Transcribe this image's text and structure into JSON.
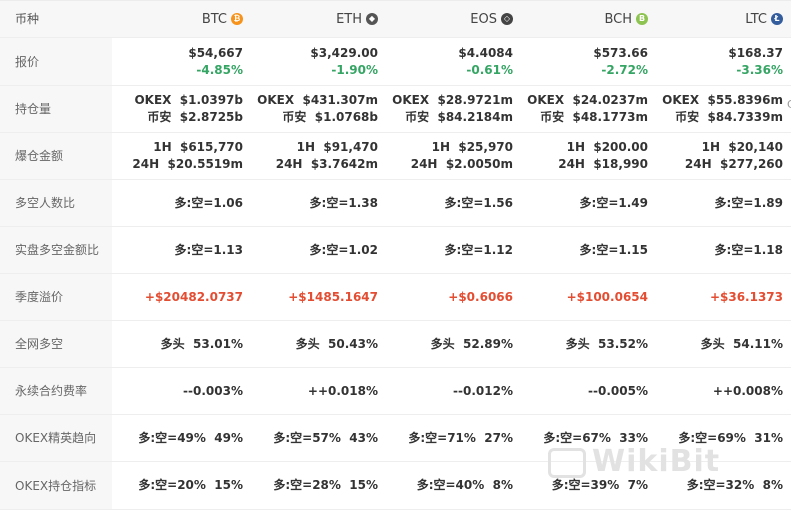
{
  "header": {
    "label": "币种",
    "coins": [
      {
        "name": "BTC",
        "icon": "bitcoin-icon",
        "color": "#f7931a",
        "glyph": "₿"
      },
      {
        "name": "ETH",
        "icon": "ethereum-icon",
        "color": "#555555",
        "glyph": "◆"
      },
      {
        "name": "EOS",
        "icon": "eos-icon",
        "color": "#444444",
        "glyph": "◇"
      },
      {
        "name": "BCH",
        "icon": "bitcoin-cash-icon",
        "color": "#8dc351",
        "glyph": "B"
      },
      {
        "name": "LTC",
        "icon": "litecoin-icon",
        "color": "#345d9d",
        "glyph": "Ł"
      }
    ]
  },
  "rows": {
    "price": {
      "label": "报价",
      "cells": [
        {
          "price": "$54,667",
          "change": "-4.85%"
        },
        {
          "price": "$3,429.00",
          "change": "-1.90%"
        },
        {
          "price": "$4.4084",
          "change": "-0.61%"
        },
        {
          "price": "$573.66",
          "change": "-2.72%"
        },
        {
          "price": "$168.37",
          "change": "-3.36%"
        }
      ]
    },
    "holdings": {
      "label": "持仓量",
      "cells": [
        {
          "line1": "OKEX  $1.0397b",
          "line2": "币安  $2.8725b"
        },
        {
          "line1": "OKEX  $431.307m",
          "line2": "币安  $1.0768b"
        },
        {
          "line1": "OKEX  $28.9721m",
          "line2": "币安  $84.2184m"
        },
        {
          "line1": "OKEX  $24.0237m",
          "line2": "币安  $48.1773m"
        },
        {
          "line1": "OKEX  $55.8396m",
          "line2": "币安  $84.7339m"
        }
      ],
      "trail": "C"
    },
    "liquidation": {
      "label": "爆仓金额",
      "cells": [
        {
          "line1": "1H  $615,770",
          "line2": "24H  $20.5519m"
        },
        {
          "line1": "1H  $91,470",
          "line2": "24H  $3.7642m"
        },
        {
          "line1": "1H  $25,970",
          "line2": "24H  $2.0050m"
        },
        {
          "line1": "1H  $200.00",
          "line2": "24H  $18,990"
        },
        {
          "line1": "1H  $20,140",
          "line2": "24H  $277,260"
        }
      ]
    },
    "long_short_people": {
      "label": "多空人数比",
      "cells": [
        "多:空=1.06",
        "多:空=1.38",
        "多:空=1.56",
        "多:空=1.49",
        "多:空=1.89"
      ]
    },
    "real_long_short": {
      "label": "实盘多空金额比",
      "cells": [
        "多:空=1.13",
        "多:空=1.02",
        "多:空=1.12",
        "多:空=1.15",
        "多:空=1.18"
      ]
    },
    "quarterly_premium": {
      "label": "季度溢价",
      "cells": [
        "+$20482.0737",
        "+$1485.1647",
        "+$0.6066",
        "+$100.0654",
        "+$36.1373"
      ]
    },
    "network_long_short": {
      "label": "全网多空",
      "cells": [
        "多头  53.01%",
        "多头  50.43%",
        "多头  52.89%",
        "多头  53.52%",
        "多头  54.11%"
      ]
    },
    "funding_rate": {
      "label": "永续合约费率",
      "cells": [
        "--0.003%",
        "++0.018%",
        "--0.012%",
        "--0.005%",
        "++0.008%"
      ]
    },
    "okex_elite": {
      "label": "OKEX精英趋向",
      "cells": [
        "多:空=49%  49%",
        "多:空=57%  43%",
        "多:空=71%  27%",
        "多:空=67%  33%",
        "多:空=69%  31%"
      ]
    },
    "okex_position": {
      "label": "OKEX持仓指标",
      "cells": [
        "多:空=20%  15%",
        "多:空=28%  15%",
        "多:空=40%  8%",
        "多:空=39%  7%",
        "多:空=32%  8%"
      ]
    }
  },
  "watermark": "WikiBit"
}
